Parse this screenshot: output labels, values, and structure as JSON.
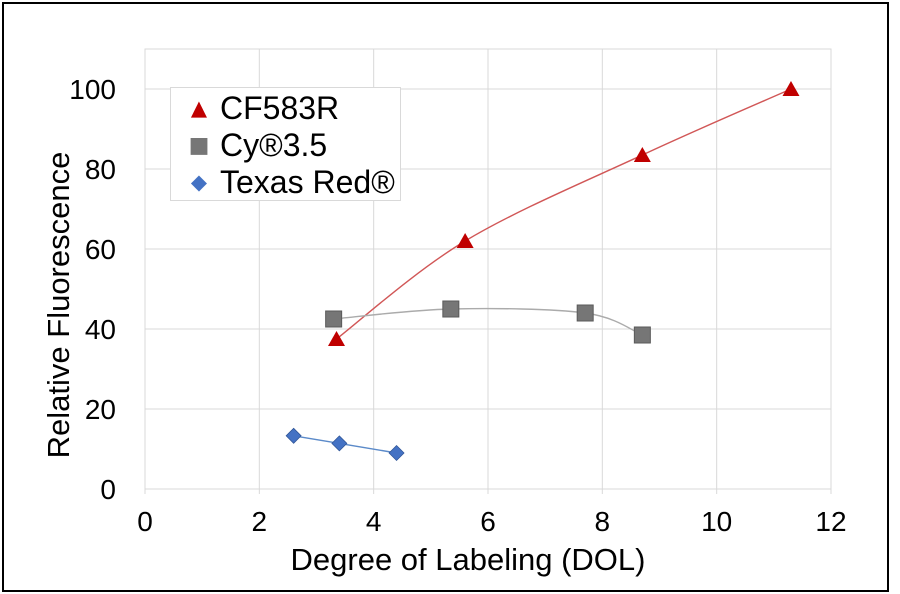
{
  "chart_data": {
    "type": "scatter",
    "title": "",
    "xlabel": "Degree of Labeling (DOL)",
    "ylabel": "Relative Fluorescence",
    "xlim": [
      0,
      12
    ],
    "ylim": [
      0,
      110
    ],
    "xticks": [
      0,
      2,
      4,
      6,
      8,
      10,
      12
    ],
    "yticks": [
      0,
      20,
      40,
      60,
      80,
      100
    ],
    "grid": true,
    "grid_color": "#d9d9d9",
    "legend_position": "upper-left-inside",
    "series": [
      {
        "name": "CF583R",
        "marker": "triangle",
        "color": "#c00000",
        "line_color": "#d15757",
        "points": [
          [
            3.35,
            37.5
          ],
          [
            5.6,
            62
          ],
          [
            8.7,
            83.5
          ],
          [
            11.3,
            100
          ]
        ]
      },
      {
        "name": "Cy®3.5",
        "marker": "square",
        "color": "#767676",
        "line_color": "#ababab",
        "points": [
          [
            3.3,
            42.5
          ],
          [
            5.35,
            45
          ],
          [
            7.7,
            44
          ],
          [
            8.7,
            38.5
          ]
        ]
      },
      {
        "name": "Texas Red®",
        "marker": "diamond",
        "color": "#4472c4",
        "line_color": "#5b8ac9",
        "points": [
          [
            2.6,
            13.3
          ],
          [
            3.4,
            11.4
          ],
          [
            4.4,
            9
          ]
        ]
      }
    ]
  }
}
